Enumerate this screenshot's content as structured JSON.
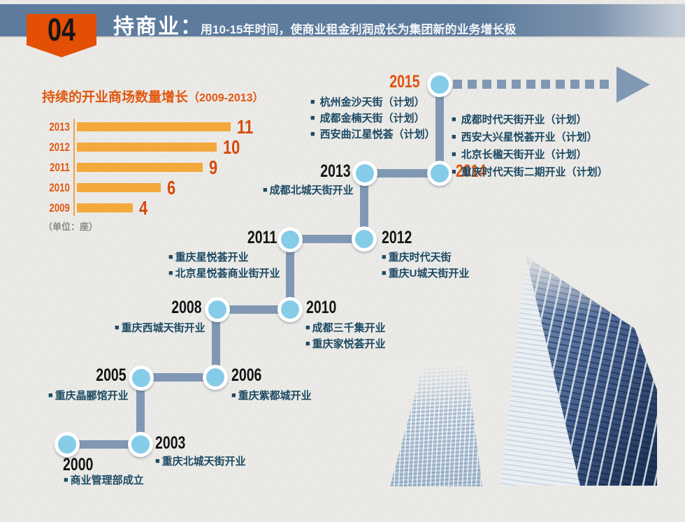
{
  "header": {
    "badge": "04",
    "badge_color": "#e24f05",
    "bar_color": "#5d7b9d",
    "title": "持商业：",
    "subtitle": "用10-15年时间，使商业租金利润成长为集团新的业务增长极"
  },
  "chart_data": {
    "type": "bar",
    "orientation": "horizontal",
    "title": "持续的开业商场数量增长",
    "title_suffix": "（2009-2013）",
    "categories": [
      "2013",
      "2012",
      "2011",
      "2010",
      "2009"
    ],
    "values": [
      11,
      10,
      9,
      6,
      4
    ],
    "xlim": [
      0,
      11
    ],
    "unit_note": "（单位：座）",
    "grid": false,
    "legend": false,
    "bar_color": "#f3a93c",
    "label_color": "#e2570f",
    "value_color": "#d8490b",
    "axis_color": "#f0a14b",
    "title_color": "#e2570f"
  },
  "timeline": {
    "line_color": "#8098b3",
    "node_fill": "#85cce9",
    "event_text_color": "#1c4a63",
    "year_color": "#141414",
    "highlight_year_color": "#e2510a",
    "milestones": [
      {
        "year": "2000",
        "highlight": false,
        "events": [
          "商业管理部成立"
        ]
      },
      {
        "year": "2003",
        "highlight": false,
        "events": [
          "重庆北城天街开业"
        ]
      },
      {
        "year": "2005",
        "highlight": false,
        "events": [
          "重庆晶郦馆开业"
        ]
      },
      {
        "year": "2006",
        "highlight": false,
        "events": [
          "重庆紫都城开业"
        ]
      },
      {
        "year": "2008",
        "highlight": false,
        "events": [
          "重庆西城天街开业"
        ]
      },
      {
        "year": "2010",
        "highlight": false,
        "events": [
          "成都三千集开业",
          "重庆家悦荟开业"
        ]
      },
      {
        "year": "2011",
        "highlight": false,
        "events": [
          "重庆星悦荟开业",
          "北京星悦荟商业街开业"
        ]
      },
      {
        "year": "2012",
        "highlight": false,
        "events": [
          "重庆时代天街",
          "重庆U城天街开业"
        ]
      },
      {
        "year": "2013",
        "highlight": false,
        "events": [
          "成都北城天街开业"
        ]
      },
      {
        "year": "2014",
        "highlight": true,
        "events": [
          "成都时代天街开业（计划）",
          "西安大兴星悦荟开业（计划）",
          "北京长楹天街开业（计划）",
          "重庆时代天街二期开业（计划）"
        ]
      },
      {
        "year": "2015",
        "highlight": true,
        "events": [
          "杭州金沙天街（计划）",
          "成都金楠天街（计划）",
          "西安曲江星悦荟（计划）"
        ]
      }
    ]
  },
  "decor": {
    "buildings": [
      "skyscraper-photo-small",
      "skyscraper-photo-large"
    ]
  }
}
